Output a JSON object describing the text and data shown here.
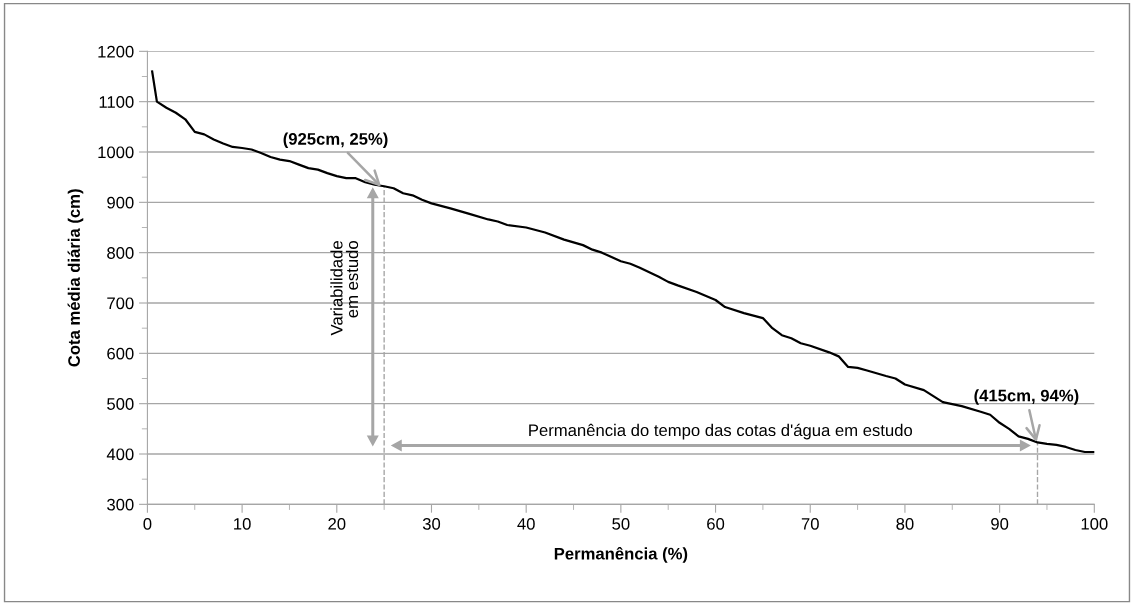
{
  "chart_data": {
    "type": "line",
    "xlabel": "Permanência (%)",
    "ylabel": "Cota média diária (cm)",
    "x": [
      0.5,
      1,
      2,
      3,
      4,
      5,
      6,
      7,
      8,
      9,
      10,
      11,
      12,
      13,
      14,
      15,
      16,
      17,
      18,
      19,
      20,
      21,
      22,
      23,
      24,
      25,
      26,
      27,
      28,
      29,
      30,
      32,
      34,
      36,
      37,
      38,
      40,
      42,
      44,
      46,
      47,
      48,
      50,
      51,
      52,
      54,
      55,
      56,
      58,
      60,
      61,
      63,
      65,
      66,
      67,
      68,
      69,
      70,
      72,
      73,
      74,
      75,
      76,
      78,
      79,
      80,
      82,
      83,
      84,
      86,
      88,
      89,
      90,
      91,
      92,
      93,
      94,
      95,
      96,
      97,
      98,
      99,
      100
    ],
    "series": [
      {
        "color": "#000000",
        "values": [
          1160,
          1100,
          1088,
          1078,
          1065,
          1040,
          1035,
          1025,
          1017,
          1010,
          1008,
          1005,
          998,
          990,
          985,
          982,
          975,
          968,
          965,
          958,
          952,
          948,
          948,
          940,
          935,
          932,
          928,
          918,
          914,
          905,
          898,
          888,
          877,
          866,
          862,
          855,
          850,
          840,
          826,
          815,
          806,
          800,
          783,
          778,
          770,
          752,
          742,
          735,
          722,
          706,
          692,
          680,
          670,
          650,
          636,
          630,
          620,
          615,
          602,
          594,
          573,
          571,
          566,
          555,
          550,
          538,
          527,
          515,
          503,
          495,
          484,
          478,
          462,
          450,
          435,
          430,
          423,
          420,
          418,
          414,
          408,
          404,
          404
        ]
      }
    ],
    "xlim": [
      0,
      100
    ],
    "xticks": [
      0,
      10,
      20,
      30,
      40,
      50,
      60,
      70,
      80,
      90,
      100
    ],
    "ylim": [
      300,
      1200
    ],
    "yticks": [
      300,
      400,
      500,
      600,
      700,
      800,
      900,
      1000,
      1100,
      1200
    ],
    "ref_lines": [
      {
        "axis": "x",
        "value": 25,
        "color": "#a6a6a6",
        "line_style": "dashed"
      },
      {
        "axis": "x",
        "value": 94,
        "color": "#a6a6a6",
        "line_style": "dashed"
      }
    ],
    "grid": "y",
    "legend": false,
    "marker": "none",
    "line_style": "solid",
    "annotations": [
      {
        "text": "(925cm, 25%)",
        "x": 25,
        "y": 925
      },
      {
        "text": "(415cm, 94%)",
        "x": 94,
        "y": 415
      },
      "Variabilidade\nem estudo",
      "Permanência do tempo das cotas d'água em estudo"
    ]
  }
}
